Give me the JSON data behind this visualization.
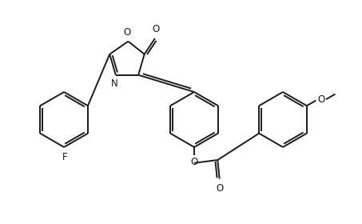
{
  "bg_color": "#ffffff",
  "line_color": "#1a1a1a",
  "line_width": 1.4,
  "font_size": 8.5,
  "fig_width": 4.53,
  "fig_height": 2.8,
  "dpi": 100,
  "xlim": [
    0,
    9.5
  ],
  "ylim": [
    0,
    5.9
  ]
}
